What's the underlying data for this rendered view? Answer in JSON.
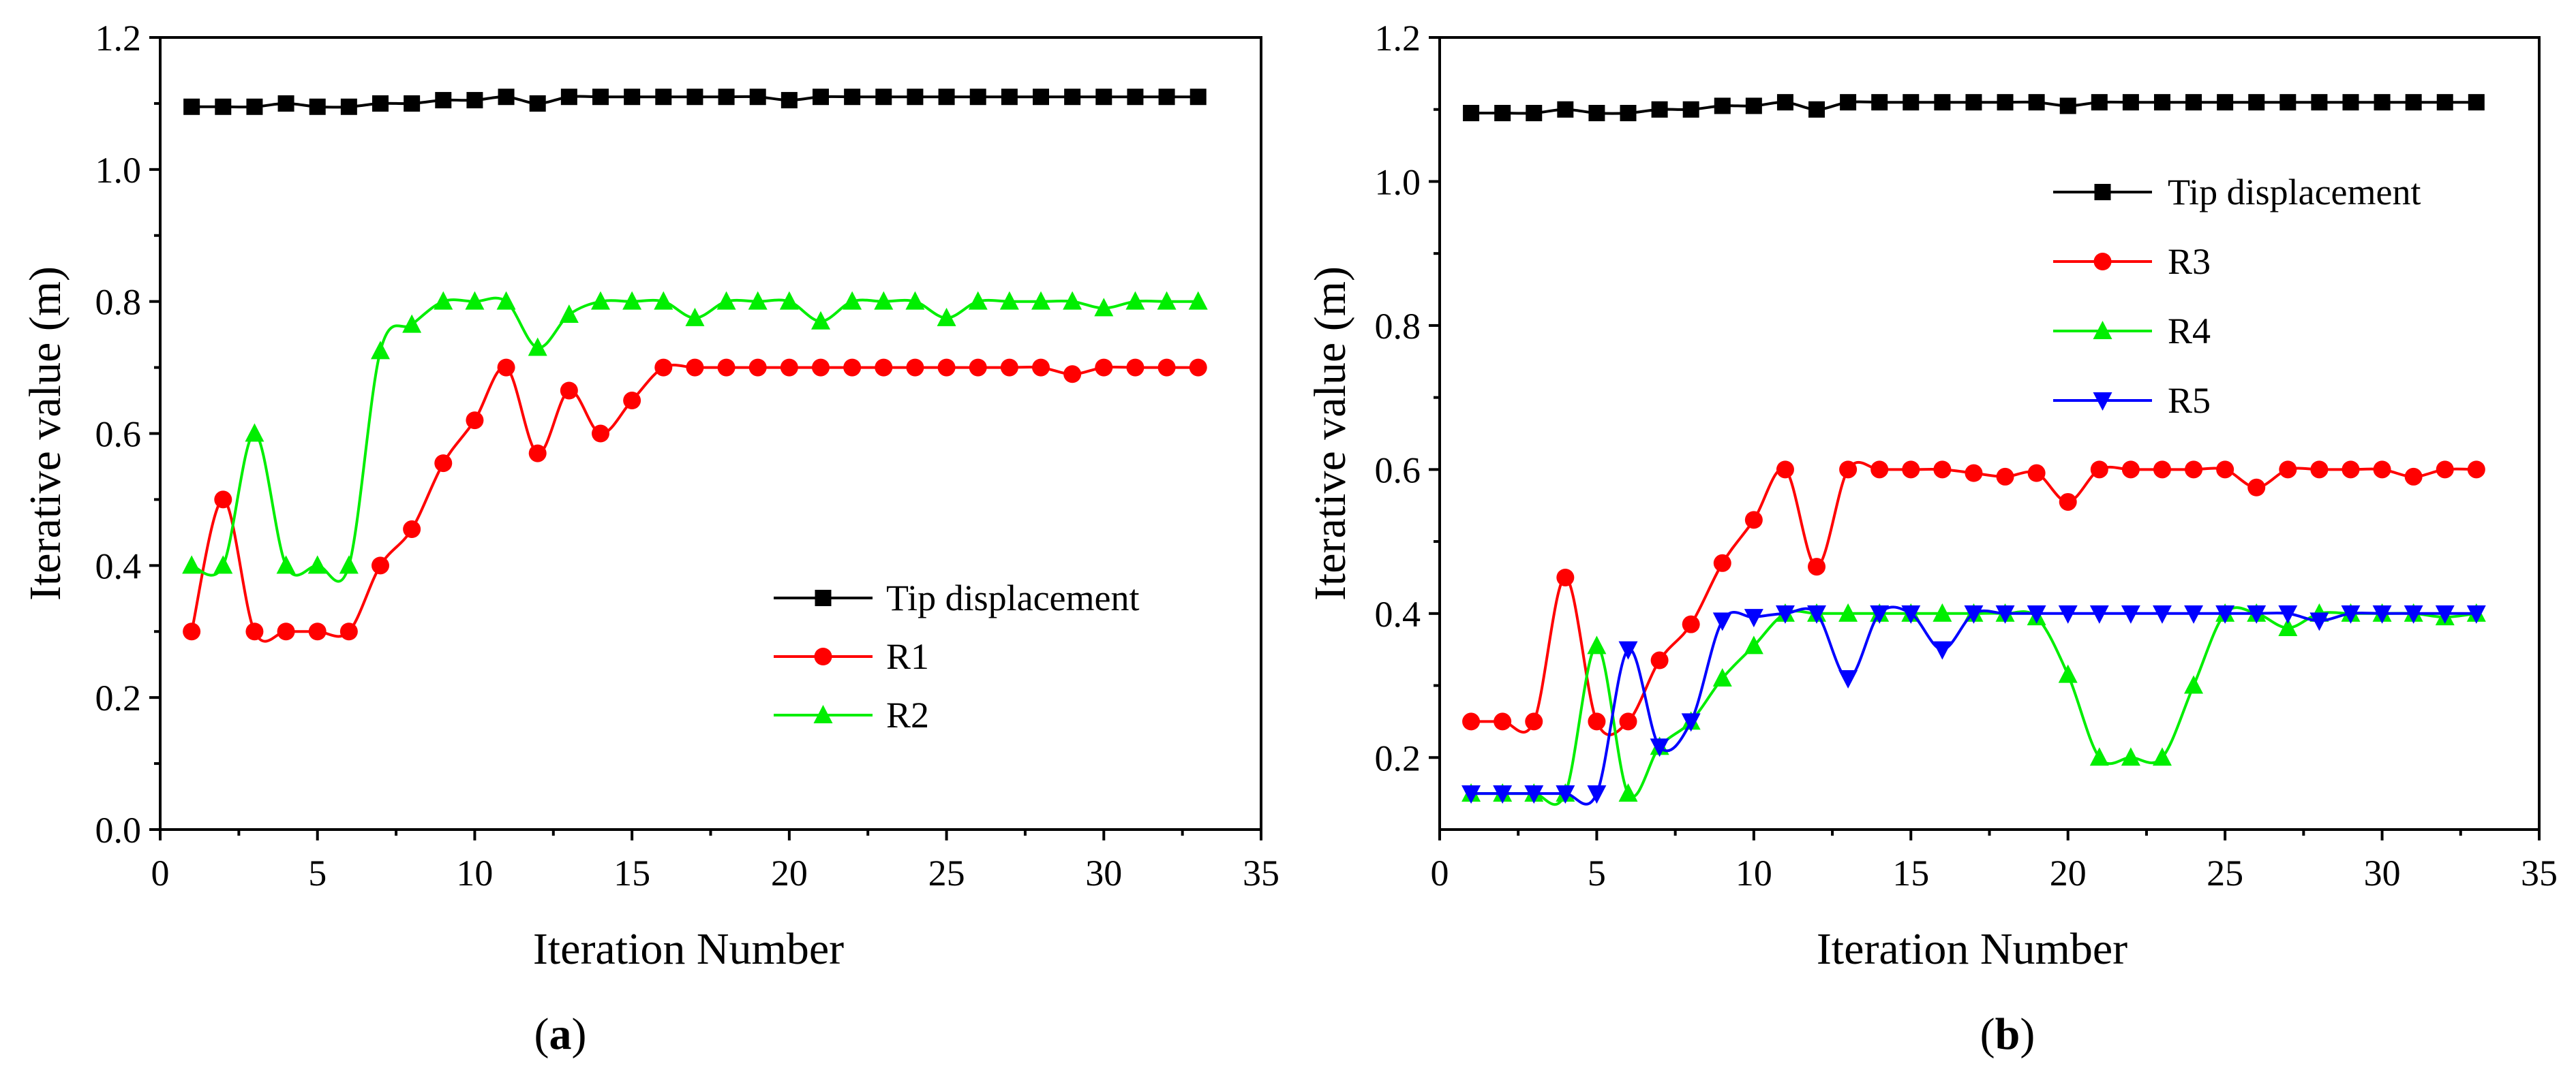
{
  "chart_data": [
    {
      "type": "line",
      "panel_label": "a",
      "xlabel": "Iteration Number",
      "ylabel": "Iterative value (m)",
      "xlim": [
        0,
        35
      ],
      "ylim": [
        0.0,
        1.2
      ],
      "xticks": [
        "0",
        "5",
        "10",
        "15",
        "20",
        "25",
        "30",
        "35"
      ],
      "yticks": [
        "0.0",
        "0.2",
        "0.4",
        "0.6",
        "0.8",
        "1.0",
        "1.2"
      ],
      "legend_position": "lower-right",
      "x": [
        1,
        2,
        3,
        4,
        5,
        6,
        7,
        8,
        9,
        10,
        11,
        12,
        13,
        14,
        15,
        16,
        17,
        18,
        19,
        20,
        21,
        22,
        23,
        24,
        25,
        26,
        27,
        28,
        29,
        30,
        31,
        32,
        33
      ],
      "series": [
        {
          "name": "Tip displacement",
          "color": "#000000",
          "marker": "square",
          "values": [
            1.095,
            1.095,
            1.095,
            1.1,
            1.095,
            1.095,
            1.1,
            1.1,
            1.105,
            1.105,
            1.11,
            1.1,
            1.11,
            1.11,
            1.11,
            1.11,
            1.11,
            1.11,
            1.11,
            1.105,
            1.11,
            1.11,
            1.11,
            1.11,
            1.11,
            1.11,
            1.11,
            1.11,
            1.11,
            1.11,
            1.11,
            1.11,
            1.11
          ]
        },
        {
          "name": "R1",
          "color": "#ff0000",
          "marker": "circle",
          "values": [
            0.3,
            0.5,
            0.3,
            0.3,
            0.3,
            0.3,
            0.4,
            0.455,
            0.555,
            0.62,
            0.7,
            0.57,
            0.665,
            0.6,
            0.65,
            0.7,
            0.7,
            0.7,
            0.7,
            0.7,
            0.7,
            0.7,
            0.7,
            0.7,
            0.7,
            0.7,
            0.7,
            0.7,
            0.69,
            0.7,
            0.7,
            0.7,
            0.7
          ]
        },
        {
          "name": "R2",
          "color": "#00ee00",
          "marker": "triangle-up",
          "values": [
            0.4,
            0.4,
            0.6,
            0.4,
            0.4,
            0.4,
            0.725,
            0.765,
            0.8,
            0.8,
            0.8,
            0.73,
            0.78,
            0.8,
            0.8,
            0.8,
            0.775,
            0.8,
            0.8,
            0.8,
            0.77,
            0.8,
            0.8,
            0.8,
            0.775,
            0.8,
            0.8,
            0.8,
            0.8,
            0.79,
            0.8,
            0.8,
            0.8
          ]
        }
      ]
    },
    {
      "type": "line",
      "panel_label": "b",
      "xlabel": "Iteration Number",
      "ylabel": "Iterative value (m)",
      "xlim": [
        0,
        35
      ],
      "ylim": [
        0.1,
        1.2
      ],
      "xticks": [
        "0",
        "5",
        "10",
        "15",
        "20",
        "25",
        "30",
        "35"
      ],
      "yticks": [
        "0.2",
        "0.4",
        "0.6",
        "0.8",
        "1.0",
        "1.2"
      ],
      "legend_position": "upper-right",
      "x": [
        1,
        2,
        3,
        4,
        5,
        6,
        7,
        8,
        9,
        10,
        11,
        12,
        13,
        14,
        15,
        16,
        17,
        18,
        19,
        20,
        21,
        22,
        23,
        24,
        25,
        26,
        27,
        28,
        29,
        30,
        31,
        32,
        33
      ],
      "series": [
        {
          "name": "Tip displacement",
          "color": "#000000",
          "marker": "square",
          "values": [
            1.095,
            1.095,
            1.095,
            1.1,
            1.095,
            1.095,
            1.1,
            1.1,
            1.105,
            1.105,
            1.11,
            1.1,
            1.11,
            1.11,
            1.11,
            1.11,
            1.11,
            1.11,
            1.11,
            1.105,
            1.11,
            1.11,
            1.11,
            1.11,
            1.11,
            1.11,
            1.11,
            1.11,
            1.11,
            1.11,
            1.11,
            1.11,
            1.11
          ]
        },
        {
          "name": "R3",
          "color": "#ff0000",
          "marker": "circle",
          "values": [
            0.25,
            0.25,
            0.25,
            0.45,
            0.25,
            0.25,
            0.335,
            0.385,
            0.47,
            0.53,
            0.6,
            0.465,
            0.6,
            0.6,
            0.6,
            0.6,
            0.595,
            0.59,
            0.595,
            0.555,
            0.6,
            0.6,
            0.6,
            0.6,
            0.6,
            0.575,
            0.6,
            0.6,
            0.6,
            0.6,
            0.59,
            0.6,
            0.6
          ]
        },
        {
          "name": "R4",
          "color": "#00ee00",
          "marker": "triangle-up",
          "values": [
            0.15,
            0.15,
            0.15,
            0.15,
            0.355,
            0.15,
            0.215,
            0.25,
            0.31,
            0.355,
            0.4,
            0.4,
            0.4,
            0.4,
            0.4,
            0.4,
            0.4,
            0.4,
            0.395,
            0.315,
            0.2,
            0.2,
            0.2,
            0.3,
            0.4,
            0.4,
            0.38,
            0.4,
            0.4,
            0.4,
            0.4,
            0.395,
            0.4
          ]
        },
        {
          "name": "R5",
          "color": "#0000ff",
          "marker": "triangle-down",
          "values": [
            0.15,
            0.15,
            0.15,
            0.15,
            0.15,
            0.35,
            0.215,
            0.25,
            0.39,
            0.395,
            0.4,
            0.4,
            0.31,
            0.4,
            0.4,
            0.35,
            0.4,
            0.4,
            0.4,
            0.4,
            0.4,
            0.4,
            0.4,
            0.4,
            0.4,
            0.4,
            0.4,
            0.39,
            0.4,
            0.4,
            0.4,
            0.4,
            0.4
          ]
        }
      ]
    }
  ]
}
